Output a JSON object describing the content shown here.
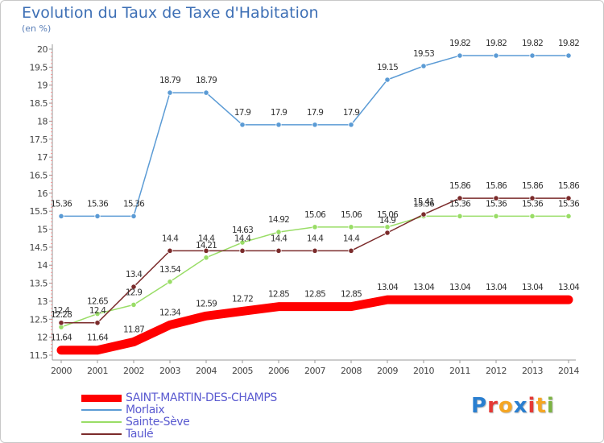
{
  "chart_data": {
    "type": "line",
    "title": "Evolution du Taux de Taxe d'Habitation",
    "unit_label": "(en %)",
    "x": [
      "2000",
      "2001",
      "2002",
      "2003",
      "2004",
      "2005",
      "2006",
      "2007",
      "2008",
      "2009",
      "2010",
      "2011",
      "2012",
      "2013",
      "2014"
    ],
    "ylim": [
      11.5,
      20
    ],
    "yticks": [
      "11.5",
      "12",
      "12.5",
      "13",
      "13.5",
      "14",
      "14.5",
      "15",
      "15.5",
      "16",
      "16.5",
      "17",
      "17.5",
      "18",
      "18.5",
      "19",
      "19.5",
      "20"
    ],
    "grid": false,
    "legend_position": "bottom-left",
    "series": [
      {
        "name": "SAINT-MARTIN-DES-CHAMPS",
        "color": "#ff0000",
        "values": [
          11.64,
          11.64,
          11.87,
          12.34,
          12.59,
          12.72,
          12.85,
          12.85,
          12.85,
          13.04,
          13.04,
          13.04,
          13.04,
          13.04,
          13.04
        ],
        "labels": [
          "11.64",
          "11.64",
          "11.87",
          "12.34",
          "12.59",
          "12.72",
          "12.85",
          "12.85",
          "12.85",
          "13.04",
          "13.04",
          "13.04",
          "13.04",
          "13.04",
          "13.04"
        ]
      },
      {
        "name": "Morlaix",
        "color": "#5b9bd5",
        "values": [
          15.36,
          15.36,
          15.36,
          18.79,
          18.79,
          17.9,
          17.9,
          17.9,
          17.9,
          19.15,
          19.53,
          19.82,
          19.82,
          19.82,
          19.82
        ],
        "labels": [
          "15.36",
          "15.36",
          "15.36",
          "18.79",
          "18.79",
          "17.9",
          "17.9",
          "17.9",
          "17.9",
          "19.15",
          "19.53",
          "19.82",
          "19.82",
          "19.82",
          "19.82"
        ]
      },
      {
        "name": "Sainte-Sève",
        "color": "#99dd66",
        "values": [
          12.28,
          12.65,
          12.9,
          13.54,
          14.21,
          14.63,
          14.92,
          15.06,
          15.06,
          15.06,
          15.36,
          15.36,
          15.36,
          15.36,
          15.36
        ],
        "labels": [
          "12.28",
          "12.65",
          "12.9",
          "13.54",
          "14.21",
          "14.63",
          "14.92",
          "15.06",
          "15.06",
          "15.06",
          "15.36",
          "15.36",
          "15.36",
          "15.36",
          "15.36"
        ]
      },
      {
        "name": "Taulé",
        "color": "#7b2b2b",
        "values": [
          12.4,
          12.4,
          13.4,
          14.4,
          14.4,
          14.4,
          14.4,
          14.4,
          14.4,
          14.9,
          15.41,
          15.86,
          15.86,
          15.86,
          15.86
        ],
        "labels": [
          "12.4",
          "12.4",
          "13.4",
          "14.4",
          "14.4",
          "14.4",
          "14.4",
          "14.4",
          "14.4",
          "14.9",
          "15.41",
          "15.86",
          "15.86",
          "15.86",
          "15.86"
        ]
      }
    ]
  },
  "brand": {
    "letters": [
      "P",
      "r",
      "o",
      "x",
      "i",
      "t",
      "i"
    ],
    "colors": [
      "#2a7fd0",
      "#e53935",
      "#f5a623",
      "#2a7fd0",
      "#e53935",
      "#f5a623",
      "#7cb342"
    ]
  }
}
